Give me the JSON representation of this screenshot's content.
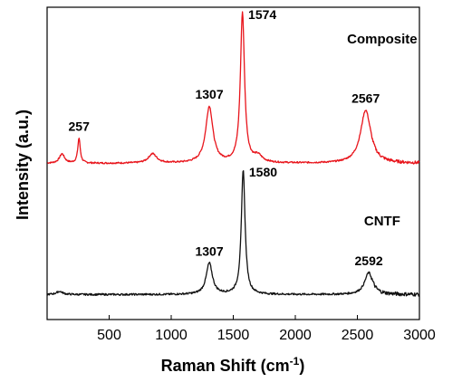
{
  "chart_data": {
    "type": "line",
    "xlabel_main": "Raman Shift (cm",
    "xlabel_sup": "-1",
    "xlabel_end": ")",
    "ylabel": "Intensity (a.u.)",
    "xlim": [
      0,
      3000
    ],
    "ylim": [
      0,
      100
    ],
    "x_ticks": [
      500,
      1000,
      1500,
      2000,
      2500,
      3000
    ],
    "grid": false,
    "series": [
      {
        "name": "Composite",
        "color": "#e8141b",
        "baseline": 50,
        "peaks": [
          [
            120,
            3,
            25
          ],
          [
            257,
            8,
            12
          ],
          [
            850,
            3,
            40
          ],
          [
            1307,
            18,
            35
          ],
          [
            1574,
            48,
            20
          ],
          [
            1700,
            2,
            40
          ],
          [
            2567,
            17,
            50
          ]
        ],
        "noise": 0.5
      },
      {
        "name": "CNTF",
        "color": "#111111",
        "baseline": 8,
        "peaks": [
          [
            100,
            1,
            30
          ],
          [
            1307,
            10,
            30
          ],
          [
            1580,
            40,
            18
          ],
          [
            2592,
            7,
            40
          ]
        ],
        "noise": 0.6
      }
    ],
    "peak_labels": [
      {
        "text": "257",
        "x": 257,
        "series": 0
      },
      {
        "text": "1307",
        "x": 1307,
        "series": 0
      },
      {
        "text": "1574",
        "x": 1574,
        "series": 0
      },
      {
        "text": "2567",
        "x": 2567,
        "series": 0
      },
      {
        "text": "1307",
        "x": 1307,
        "series": 1
      },
      {
        "text": "1580",
        "x": 1580,
        "series": 1
      },
      {
        "text": "2592",
        "x": 2592,
        "series": 1
      }
    ]
  }
}
